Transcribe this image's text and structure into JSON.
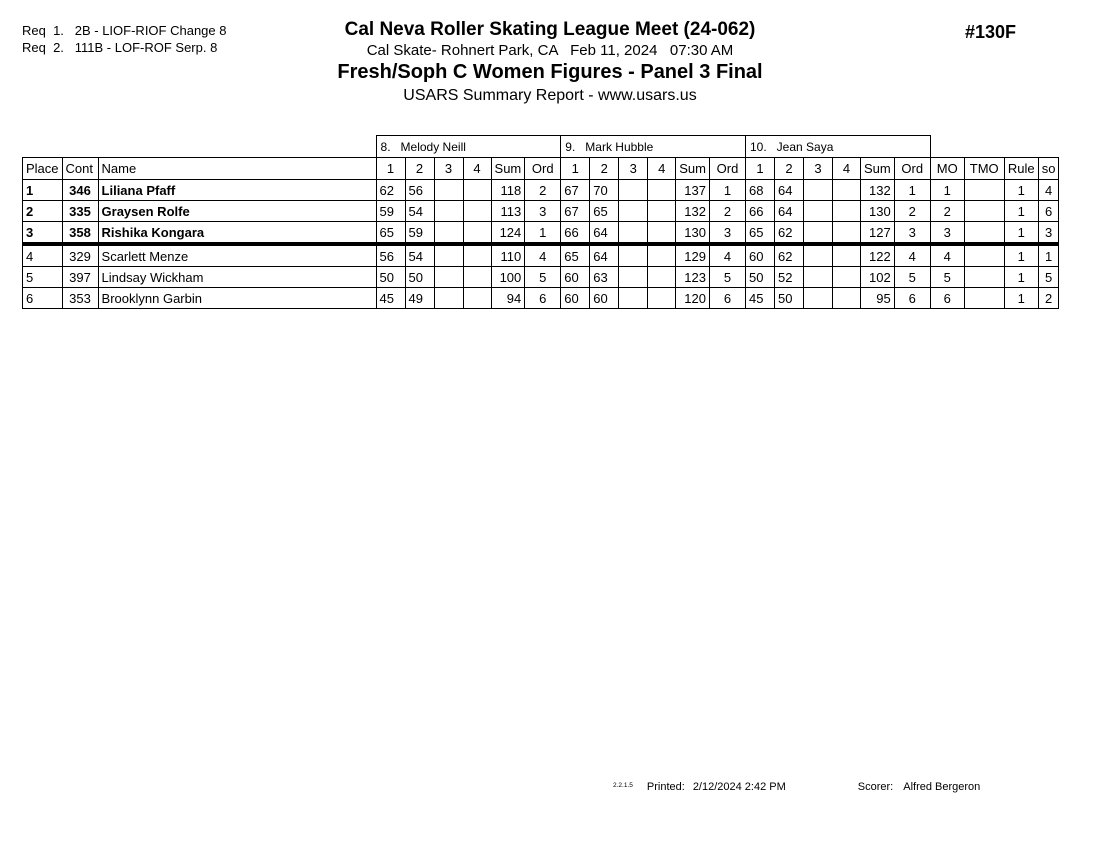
{
  "header": {
    "requirements": [
      "Req  1.   2B - LIOF-RIOF Change 8",
      "Req  2.   111B - LOF-ROF Serp. 8"
    ],
    "meet_title": "Cal Neva Roller Skating League Meet (24-062)",
    "venue_date": "Cal Skate- Rohnert Park, CA   Feb 11, 2024   07:30 AM",
    "event_title": "Fresh/Soph C Women Figures - Panel 3 Final",
    "report_line": "USARS Summary Report - www.usars.us",
    "event_number": "#130F"
  },
  "table": {
    "judges": [
      "8.   Melody Neill",
      "9.   Mark Hubble",
      "10.   Jean Saya"
    ],
    "columns": {
      "place": "Place",
      "cont": "Cont",
      "name": "Name",
      "score": [
        "1",
        "2",
        "3",
        "4"
      ],
      "sum": "Sum",
      "ord": "Ord",
      "right": [
        "MO",
        "TMO",
        "Rule",
        "so"
      ]
    },
    "rows": [
      {
        "place": "1",
        "cont": "346",
        "name": "Liliana Pfaff",
        "bold": true,
        "cut": false,
        "judges": [
          {
            "scores": [
              "62",
              "56",
              "",
              ""
            ],
            "sum": "118",
            "ord": "2"
          },
          {
            "scores": [
              "67",
              "70",
              "",
              ""
            ],
            "sum": "137",
            "ord": "1"
          },
          {
            "scores": [
              "68",
              "64",
              "",
              ""
            ],
            "sum": "132",
            "ord": "1"
          }
        ],
        "mo": "1",
        "tmo": "",
        "rule": "1",
        "so": "4"
      },
      {
        "place": "2",
        "cont": "335",
        "name": "Graysen Rolfe",
        "bold": true,
        "cut": false,
        "judges": [
          {
            "scores": [
              "59",
              "54",
              "",
              ""
            ],
            "sum": "113",
            "ord": "3"
          },
          {
            "scores": [
              "67",
              "65",
              "",
              ""
            ],
            "sum": "132",
            "ord": "2"
          },
          {
            "scores": [
              "66",
              "64",
              "",
              ""
            ],
            "sum": "130",
            "ord": "2"
          }
        ],
        "mo": "2",
        "tmo": "",
        "rule": "1",
        "so": "6"
      },
      {
        "place": "3",
        "cont": "358",
        "name": "Rishika Kongara",
        "bold": true,
        "cut": true,
        "judges": [
          {
            "scores": [
              "65",
              "59",
              "",
              ""
            ],
            "sum": "124",
            "ord": "1"
          },
          {
            "scores": [
              "66",
              "64",
              "",
              ""
            ],
            "sum": "130",
            "ord": "3"
          },
          {
            "scores": [
              "65",
              "62",
              "",
              ""
            ],
            "sum": "127",
            "ord": "3"
          }
        ],
        "mo": "3",
        "tmo": "",
        "rule": "1",
        "so": "3"
      },
      {
        "place": "4",
        "cont": "329",
        "name": "Scarlett Menze",
        "bold": false,
        "cut": false,
        "judges": [
          {
            "scores": [
              "56",
              "54",
              "",
              ""
            ],
            "sum": "110",
            "ord": "4"
          },
          {
            "scores": [
              "65",
              "64",
              "",
              ""
            ],
            "sum": "129",
            "ord": "4"
          },
          {
            "scores": [
              "60",
              "62",
              "",
              ""
            ],
            "sum": "122",
            "ord": "4"
          }
        ],
        "mo": "4",
        "tmo": "",
        "rule": "1",
        "so": "1"
      },
      {
        "place": "5",
        "cont": "397",
        "name": "Lindsay Wickham",
        "bold": false,
        "cut": false,
        "judges": [
          {
            "scores": [
              "50",
              "50",
              "",
              ""
            ],
            "sum": "100",
            "ord": "5"
          },
          {
            "scores": [
              "60",
              "63",
              "",
              ""
            ],
            "sum": "123",
            "ord": "5"
          },
          {
            "scores": [
              "50",
              "52",
              "",
              ""
            ],
            "sum": "102",
            "ord": "5"
          }
        ],
        "mo": "5",
        "tmo": "",
        "rule": "1",
        "so": "5"
      },
      {
        "place": "6",
        "cont": "353",
        "name": "Brooklynn Garbin",
        "bold": false,
        "cut": false,
        "judges": [
          {
            "scores": [
              "45",
              "49",
              "",
              ""
            ],
            "sum": "94",
            "ord": "6"
          },
          {
            "scores": [
              "60",
              "60",
              "",
              ""
            ],
            "sum": "120",
            "ord": "6"
          },
          {
            "scores": [
              "45",
              "50",
              "",
              ""
            ],
            "sum": "95",
            "ord": "6"
          }
        ],
        "mo": "6",
        "tmo": "",
        "rule": "1",
        "so": "2"
      }
    ]
  },
  "footer": {
    "version": "2.2.1.5",
    "printed_label": "Printed:",
    "printed_value": "2/12/2024  2:42 PM",
    "scorer_label": "Scorer:",
    "scorer_value": "Alfred Bergeron"
  }
}
